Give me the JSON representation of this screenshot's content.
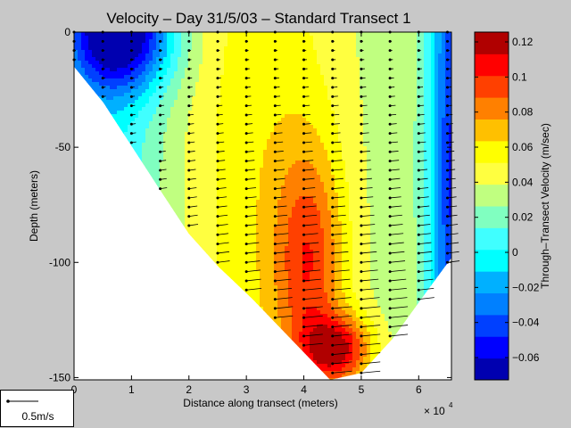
{
  "chart_data": {
    "type": "heatmap",
    "subtype": "filled-contour-with-quiver",
    "title": "Velocity – Day 31/5/03 – Standard Transect 1",
    "xlabel": "Distance along transect (meters)",
    "x_multiplier_label": "× 10",
    "x_multiplier_exponent": "4",
    "ylabel": "Depth (meters)",
    "xlim": [
      0,
      65700
    ],
    "ylim": [
      -151,
      0
    ],
    "xticks": [
      0,
      10000,
      20000,
      30000,
      40000,
      50000,
      60000
    ],
    "xtick_labels": [
      "0",
      "1",
      "2",
      "3",
      "4",
      "5",
      "6"
    ],
    "yticks": [
      0,
      -50,
      -100,
      -150
    ],
    "ytick_labels": [
      "0",
      "-50",
      "-100",
      "-150"
    ],
    "colorbar": {
      "label": "Through–Transect Velocity (m/sec)",
      "range": [
        -0.0727,
        0.1256
      ],
      "ticks": [
        0.12,
        0.1,
        0.08,
        0.06,
        0.04,
        0.02,
        0,
        -0.02,
        -0.04,
        -0.06
      ],
      "tick_labels": [
        "0.12",
        "0.1",
        "0.08",
        "0.06",
        "0.04",
        "0.02",
        "0",
        "−0.02",
        "−0.04",
        "−0.06"
      ],
      "colors": [
        "#0000B0",
        "#0000FF",
        "#0040FF",
        "#0080FF",
        "#00B0FF",
        "#00FFFF",
        "#40FFFF",
        "#80FFC0",
        "#C0FF80",
        "#FFFF40",
        "#FFFF00",
        "#FFC000",
        "#FF8000",
        "#FF4000",
        "#FF0000",
        "#B00000"
      ]
    },
    "bathymetry": [
      [
        0,
        -15
      ],
      [
        5100,
        -30.6
      ],
      [
        15100,
        -69
      ],
      [
        20000,
        -87.6
      ],
      [
        25200,
        -102
      ],
      [
        31100,
        -116
      ],
      [
        44600,
        -151
      ],
      [
        50000,
        -148
      ],
      [
        55500,
        -133
      ],
      [
        61000,
        -114
      ],
      [
        65700,
        -98
      ]
    ],
    "velocity_field_model": {
      "base": 0.03,
      "components": [
        {
          "amp": -0.1,
          "x0": 8000,
          "sx": 9000,
          "d0": 0,
          "sd": 25
        },
        {
          "amp": -0.03,
          "x0": 5000,
          "sx": 10000,
          "d0": 60,
          "sd": 200
        },
        {
          "amp": 0.03,
          "x0": 33000,
          "sx": 15000,
          "d0": 60,
          "sd": 200
        },
        {
          "amp": 0.05,
          "x0": 41000,
          "sx": 6000,
          "d0": 100,
          "sd": 50
        },
        {
          "amp": 0.07,
          "x0": 46000,
          "sx": 6000,
          "d0": 138,
          "sd": 15
        },
        {
          "amp": -0.08,
          "x0": 66000,
          "sx": 4000,
          "d0": 60,
          "sd": 200
        }
      ]
    },
    "quiver": {
      "x_spacing": 5000,
      "depth_spacing": 4,
      "scale_label": "0.5m/s",
      "scale_value": 0.5
    }
  }
}
